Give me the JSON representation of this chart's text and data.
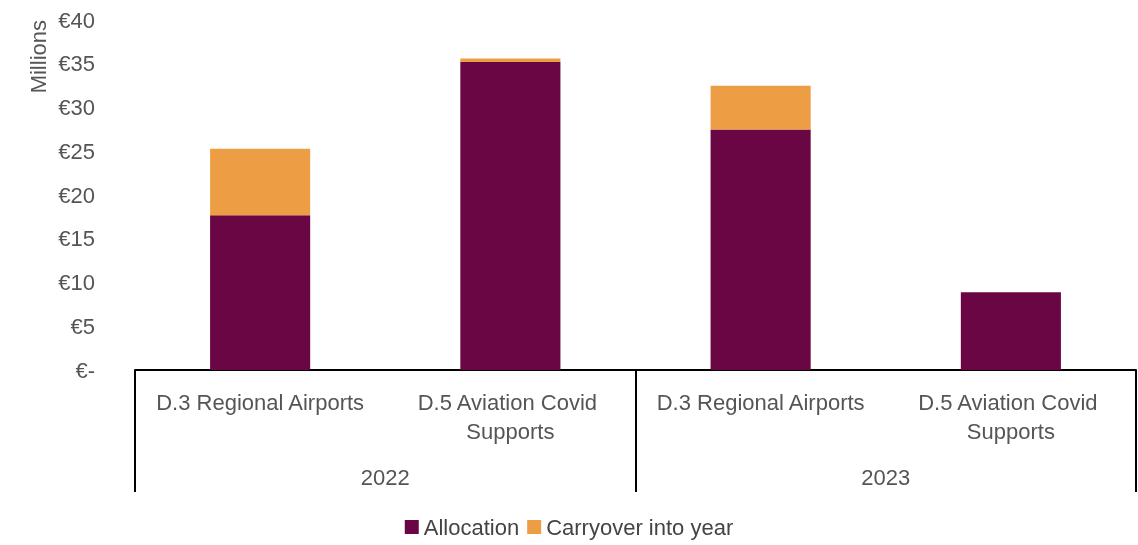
{
  "chart_data": {
    "type": "bar",
    "stacked": true,
    "ylabel": "Millions",
    "categories": [
      "D.3 Regional Airports",
      "D.5 Aviation Covid Supports",
      "D.3 Regional Airports",
      "D.5 Aviation Covid Supports"
    ],
    "annotations": [
      "2022",
      "2023"
    ],
    "series": [
      {
        "name": "Allocation",
        "color": "#6b0644",
        "values": [
          17.7,
          35.2,
          27.5,
          8.9
        ]
      },
      {
        "name": "Carryover into year",
        "color": "#ed9e45",
        "values": [
          7.6,
          0.4,
          5.0,
          0
        ]
      }
    ],
    "ylim": [
      0,
      40
    ],
    "yticks": [
      {
        "value": 0,
        "label": "€-"
      },
      {
        "value": 5,
        "label": "€5"
      },
      {
        "value": 10,
        "label": "€10"
      },
      {
        "value": 15,
        "label": "€15"
      },
      {
        "value": 20,
        "label": "€20"
      },
      {
        "value": 25,
        "label": "€25"
      },
      {
        "value": 30,
        "label": "€30"
      },
      {
        "value": 35,
        "label": "€35"
      },
      {
        "value": 40,
        "label": "€40"
      }
    ],
    "grid": false,
    "legend": "bottom"
  }
}
